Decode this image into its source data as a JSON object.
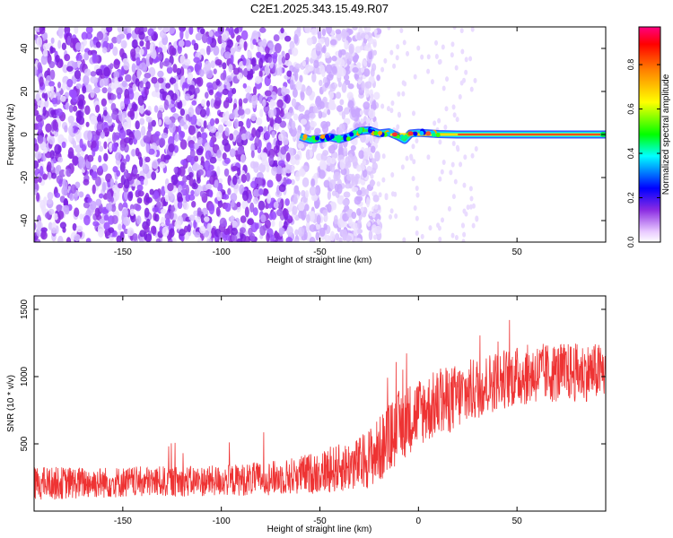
{
  "title": "C2E1.2025.343.15.49.R07",
  "chart_data": [
    {
      "type": "heatmap",
      "name": "frequency-spectrum",
      "xlabel": "Height of straight line (km)",
      "ylabel": "Frequency (Hz)",
      "xlim": [
        -195,
        95
      ],
      "ylim": [
        -50,
        50
      ],
      "xticks": [
        -150,
        -100,
        -50,
        0,
        50
      ],
      "yticks": [
        -40,
        -20,
        0,
        20,
        40
      ],
      "description_of_signal": {
        "noise_region_x": [
          -195,
          -28
        ],
        "line_x": [
          -60,
          95
        ],
        "line_frequency_hz": 0
      },
      "trace": [
        {
          "x": -60,
          "y": -1.0
        },
        {
          "x": -55,
          "y": -2.5
        },
        {
          "x": -50,
          "y": -2.0
        },
        {
          "x": -45,
          "y": -1.2
        },
        {
          "x": -40,
          "y": -2.2
        },
        {
          "x": -35,
          "y": -1.0
        },
        {
          "x": -30,
          "y": 1.5
        },
        {
          "x": -25,
          "y": 2.0
        },
        {
          "x": -20,
          "y": 0.5
        },
        {
          "x": -15,
          "y": 1.0
        },
        {
          "x": -10,
          "y": -1.0
        },
        {
          "x": -7,
          "y": -2.5
        },
        {
          "x": -4,
          "y": 0.5
        },
        {
          "x": 0,
          "y": 0.8
        },
        {
          "x": 5,
          "y": 0.5
        },
        {
          "x": 10,
          "y": 0.2
        },
        {
          "x": 20,
          "y": 0.0
        },
        {
          "x": 95,
          "y": 0.0
        }
      ],
      "colorbar": {
        "label": "Normalized spectral amplitude",
        "ticks": [
          0.0,
          0.2,
          0.4,
          0.6,
          0.8
        ],
        "tick_labels": [
          "0.0",
          "0.2",
          "0.4",
          "0.6",
          "0.8"
        ],
        "range": [
          0,
          0.97
        ]
      }
    },
    {
      "type": "line",
      "name": "snr",
      "color": "#ee3333",
      "xlabel": "Height of straight line (km)",
      "ylabel": "SNR (10 * v/v)",
      "xlim": [
        -195,
        95
      ],
      "ylim": [
        0,
        1600
      ],
      "xticks": [
        -150,
        -100,
        -50,
        0,
        50
      ],
      "yticks": [
        500,
        1000,
        1500
      ],
      "envelope": [
        {
          "x": -195,
          "lo": 80,
          "hi": 330
        },
        {
          "x": -150,
          "lo": 100,
          "hi": 330
        },
        {
          "x": -100,
          "lo": 110,
          "hi": 340
        },
        {
          "x": -70,
          "lo": 120,
          "hi": 380
        },
        {
          "x": -50,
          "lo": 130,
          "hi": 450
        },
        {
          "x": -30,
          "lo": 150,
          "hi": 550
        },
        {
          "x": -20,
          "lo": 200,
          "hi": 700
        },
        {
          "x": -10,
          "lo": 350,
          "hi": 900
        },
        {
          "x": 0,
          "lo": 480,
          "hi": 1000
        },
        {
          "x": 20,
          "lo": 600,
          "hi": 1100
        },
        {
          "x": 40,
          "lo": 750,
          "hi": 1200
        },
        {
          "x": 60,
          "lo": 800,
          "hi": 1250
        },
        {
          "x": 95,
          "lo": 820,
          "hi": 1250
        }
      ]
    }
  ]
}
